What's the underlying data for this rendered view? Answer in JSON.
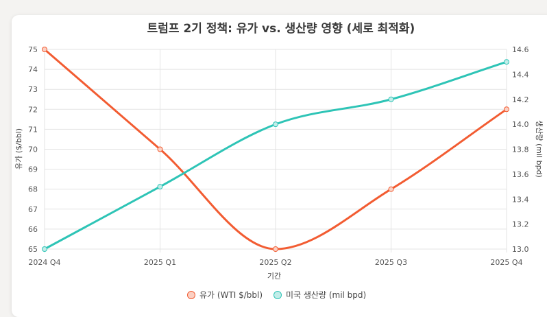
{
  "chart_data": {
    "type": "line",
    "title": "트럼프 2기 정책: 유가 vs. 생산량 영향 (세로 최적화)",
    "xlabel": "기간",
    "categories": [
      "2024 Q4",
      "2025 Q1",
      "2025 Q2",
      "2025 Q3",
      "2025 Q4"
    ],
    "y_left": {
      "label": "유가 ($/bbl)",
      "min": 65,
      "max": 75,
      "step": 1
    },
    "y_right": {
      "label": "생산량 (mil bpd)",
      "min": 13.0,
      "max": 14.6,
      "step": 0.2
    },
    "grid": true,
    "legend_position": "bottom",
    "series": [
      {
        "name": "유가 (WTI $/bbl)",
        "axis": "left",
        "color": "#f25c32",
        "fill": "#fbd0c3",
        "values": [
          75,
          70,
          65,
          68,
          72
        ]
      },
      {
        "name": "미국 생산량 (mil bpd)",
        "axis": "right",
        "color": "#2ec4b6",
        "fill": "#c2ede9",
        "values": [
          13.0,
          13.5,
          14.0,
          14.2,
          14.5
        ]
      }
    ]
  }
}
